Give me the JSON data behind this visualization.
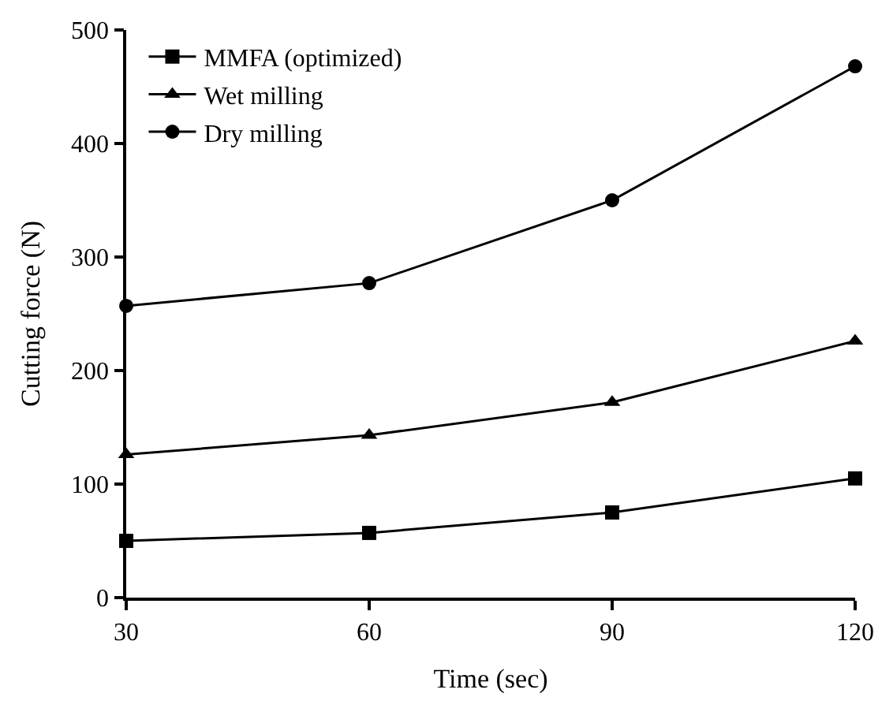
{
  "chart_data": {
    "type": "line",
    "xlabel": "Time (sec)",
    "ylabel": "Cutting force (N)",
    "x": [
      30,
      60,
      90,
      120
    ],
    "series": [
      {
        "name": "MMFA (optimized)",
        "color": "#000000",
        "marker": "square",
        "values": [
          50,
          57,
          75,
          105
        ]
      },
      {
        "name": "Wet milling",
        "color": "#000000",
        "marker": "triangle",
        "values": [
          126,
          143,
          172,
          226
        ]
      },
      {
        "name": "Dry milling",
        "color": "#000000",
        "marker": "circle",
        "values": [
          257,
          277,
          350,
          468
        ]
      }
    ],
    "xlim": [
      30,
      120
    ],
    "xticks": [
      30,
      60,
      90,
      120
    ],
    "ylim": [
      0,
      500
    ],
    "yticks": [
      0,
      100,
      200,
      300,
      400,
      500
    ],
    "legend": "top left",
    "line_style": "solid"
  }
}
